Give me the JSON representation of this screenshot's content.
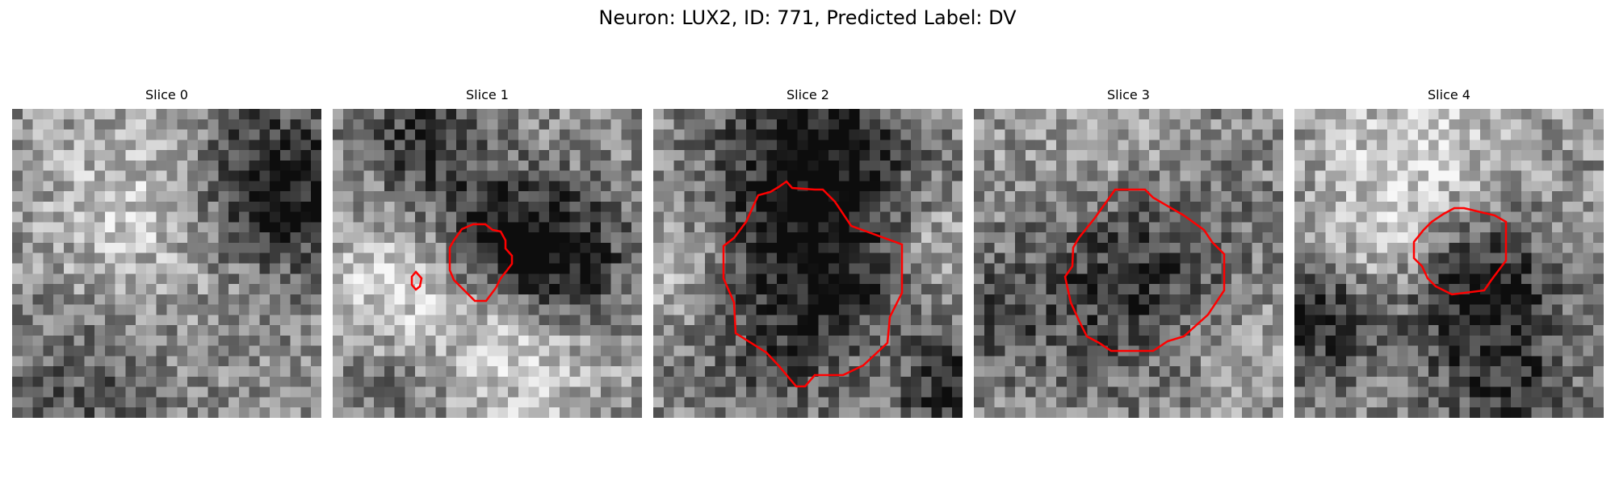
{
  "figure": {
    "suptitle": "Neuron: LUX2, ID: 771, Predicted Label: DV"
  },
  "panels": [
    {
      "title": "Slice 0",
      "seed": 11,
      "contours": []
    },
    {
      "title": "Slice 1",
      "seed": 23,
      "contours": [
        "main",
        "small"
      ]
    },
    {
      "title": "Slice 2",
      "seed": 37,
      "contours": [
        "main"
      ]
    },
    {
      "title": "Slice 3",
      "seed": 41,
      "contours": [
        "main"
      ]
    },
    {
      "title": "Slice 4",
      "seed": 53,
      "contours": [
        "main"
      ]
    }
  ],
  "style": {
    "contour_color": "#ff0000",
    "colormap": "gray"
  }
}
